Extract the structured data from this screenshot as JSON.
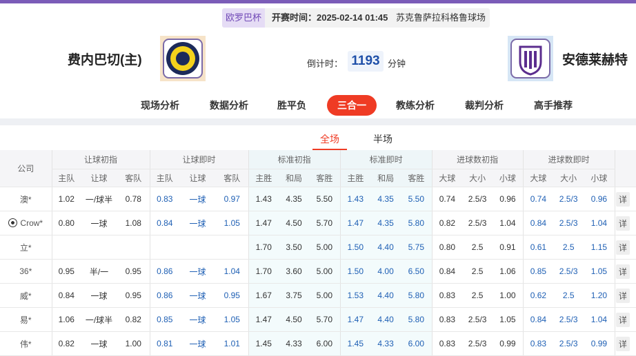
{
  "header": {
    "competition": "欧罗巴杯",
    "kickoff": "开赛时间：2025-02-14 01:45",
    "venue": "苏克鲁萨拉科格鲁球场",
    "home": "费内巴切(主)",
    "away": "安德莱赫特",
    "countdown_label": "倒计时：",
    "countdown_value": "1193",
    "countdown_unit": "分钟"
  },
  "nav": [
    "现场分析",
    "数据分析",
    "胜平负",
    "三合一",
    "教练分析",
    "裁判分析",
    "高手推荐"
  ],
  "nav_active": 3,
  "subtabs": [
    "全场",
    "半场"
  ],
  "subtab_active": 0,
  "table": {
    "company_header": "公司",
    "groups": [
      "让球初指",
      "让球即时",
      "标准初指",
      "标准即时",
      "进球数初指",
      "进球数即时"
    ],
    "subheaders": [
      "主队",
      "让球",
      "客队",
      "主队",
      "让球",
      "客队",
      "主胜",
      "和局",
      "客胜",
      "主胜",
      "和局",
      "客胜",
      "大球",
      "大小",
      "小球",
      "大球",
      "大小",
      "小球"
    ],
    "detail": "详",
    "rows": [
      {
        "company": "澳*",
        "cells": [
          "1.02",
          "一/球半",
          "0.78",
          "0.83",
          "一球",
          "0.97",
          "1.43",
          "4.35",
          "5.50",
          "1.43",
          "4.35",
          "5.50",
          "0.74",
          "2.5/3",
          "0.96",
          "0.74",
          "2.5/3",
          "0.96"
        ]
      },
      {
        "company": "Crow*",
        "cells": [
          "0.80",
          "一球",
          "1.08",
          "0.84",
          "一球",
          "1.05",
          "1.47",
          "4.50",
          "5.70",
          "1.47",
          "4.35",
          "5.80",
          "0.82",
          "2.5/3",
          "1.04",
          "0.84",
          "2.5/3",
          "1.04"
        ]
      },
      {
        "company": "立*",
        "cells": [
          null,
          null,
          null,
          null,
          null,
          null,
          "1.70",
          "3.50",
          "5.00",
          "1.50",
          "4.40",
          "5.75",
          "0.80",
          "2.5",
          "0.91",
          "0.61",
          "2.5",
          "1.15"
        ]
      },
      {
        "company": "36*",
        "cells": [
          "0.95",
          "半/一",
          "0.95",
          "0.86",
          "一球",
          "1.04",
          "1.70",
          "3.60",
          "5.00",
          "1.50",
          "4.00",
          "6.50",
          "0.84",
          "2.5",
          "1.06",
          "0.85",
          "2.5/3",
          "1.05"
        ]
      },
      {
        "company": "威*",
        "cells": [
          "0.84",
          "一球",
          "0.95",
          "0.86",
          "一球",
          "0.95",
          "1.67",
          "3.75",
          "5.00",
          "1.53",
          "4.40",
          "5.80",
          "0.83",
          "2.5",
          "1.00",
          "0.62",
          "2.5",
          "1.20"
        ]
      },
      {
        "company": "易*",
        "cells": [
          "1.06",
          "一/球半",
          "0.82",
          "0.85",
          "一球",
          "1.05",
          "1.47",
          "4.50",
          "5.70",
          "1.47",
          "4.40",
          "5.80",
          "0.83",
          "2.5/3",
          "1.05",
          "0.84",
          "2.5/3",
          "1.04"
        ]
      },
      {
        "company": "伟*",
        "cells": [
          "0.82",
          "一球",
          "1.00",
          "0.81",
          "一球",
          "1.01",
          "1.45",
          "4.33",
          "6.00",
          "1.45",
          "4.33",
          "6.00",
          "0.83",
          "2.5/3",
          "0.99",
          "0.83",
          "2.5/3",
          "0.99"
        ]
      }
    ]
  }
}
